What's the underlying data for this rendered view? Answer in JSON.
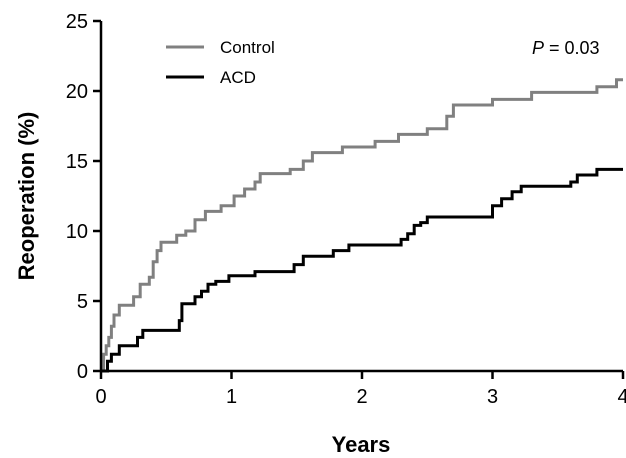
{
  "chart_data": {
    "type": "line",
    "step": true,
    "xlabel": "Years",
    "ylabel": "Reoperation (%)",
    "xlim": [
      0,
      4
    ],
    "ylim": [
      0,
      25
    ],
    "x_ticks": [
      0,
      1,
      2,
      3,
      4
    ],
    "y_ticks": [
      0,
      5,
      10,
      15,
      20,
      25
    ],
    "grid": false,
    "legend_position": "top-left",
    "annotation": {
      "italic": "P",
      "rest": " = 0.03"
    },
    "series": [
      {
        "name": "Control",
        "color": "#808080",
        "points": [
          [
            0,
            0
          ],
          [
            0.02,
            1.2
          ],
          [
            0.04,
            1.8
          ],
          [
            0.06,
            2.4
          ],
          [
            0.08,
            3.2
          ],
          [
            0.1,
            4.0
          ],
          [
            0.14,
            4.7
          ],
          [
            0.25,
            5.3
          ],
          [
            0.3,
            6.2
          ],
          [
            0.37,
            6.7
          ],
          [
            0.4,
            7.8
          ],
          [
            0.43,
            8.6
          ],
          [
            0.46,
            9.2
          ],
          [
            0.58,
            9.7
          ],
          [
            0.65,
            10.0
          ],
          [
            0.72,
            10.8
          ],
          [
            0.8,
            11.4
          ],
          [
            0.92,
            11.8
          ],
          [
            1.02,
            12.5
          ],
          [
            1.1,
            13.0
          ],
          [
            1.18,
            13.5
          ],
          [
            1.22,
            14.1
          ],
          [
            1.45,
            14.4
          ],
          [
            1.55,
            15.0
          ],
          [
            1.62,
            15.6
          ],
          [
            1.85,
            16.0
          ],
          [
            2.1,
            16.4
          ],
          [
            2.28,
            16.9
          ],
          [
            2.5,
            17.3
          ],
          [
            2.65,
            18.2
          ],
          [
            2.7,
            19.0
          ],
          [
            3.0,
            19.4
          ],
          [
            3.3,
            19.9
          ],
          [
            3.8,
            20.3
          ],
          [
            3.95,
            20.8
          ]
        ]
      },
      {
        "name": "ACD",
        "color": "#000000",
        "points": [
          [
            0,
            0
          ],
          [
            0.05,
            0.7
          ],
          [
            0.08,
            1.2
          ],
          [
            0.14,
            1.8
          ],
          [
            0.28,
            2.4
          ],
          [
            0.32,
            2.9
          ],
          [
            0.6,
            3.6
          ],
          [
            0.62,
            4.8
          ],
          [
            0.72,
            5.3
          ],
          [
            0.77,
            5.7
          ],
          [
            0.82,
            6.2
          ],
          [
            0.88,
            6.4
          ],
          [
            0.98,
            6.8
          ],
          [
            1.18,
            7.1
          ],
          [
            1.48,
            7.6
          ],
          [
            1.55,
            8.2
          ],
          [
            1.78,
            8.6
          ],
          [
            1.9,
            9.0
          ],
          [
            2.3,
            9.4
          ],
          [
            2.35,
            9.8
          ],
          [
            2.4,
            10.4
          ],
          [
            2.45,
            10.6
          ],
          [
            2.5,
            11.0
          ],
          [
            3.0,
            11.8
          ],
          [
            3.07,
            12.3
          ],
          [
            3.15,
            12.8
          ],
          [
            3.22,
            13.2
          ],
          [
            3.6,
            13.5
          ],
          [
            3.65,
            14.0
          ],
          [
            3.8,
            14.4
          ]
        ]
      }
    ]
  }
}
